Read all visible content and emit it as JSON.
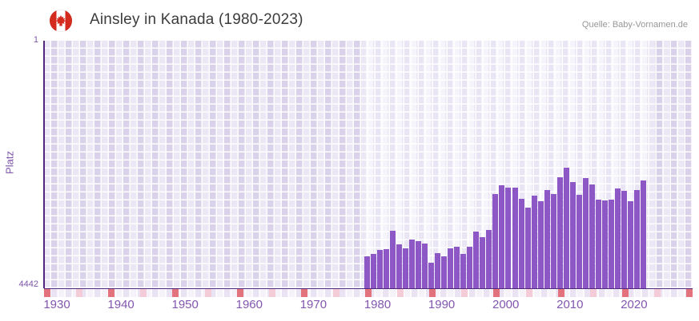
{
  "header": {
    "title": "Ainsley in Kanada (1980-2023)",
    "source": "Quelle: Baby-Vornamen.de",
    "flag_icon": "canada-flag-icon"
  },
  "y_axis": {
    "label": "Platz",
    "top_tick": "1",
    "bottom_tick": "4442"
  },
  "x_axis": {
    "ticks": [
      "1930",
      "1940",
      "1950",
      "1960",
      "1970",
      "1980",
      "1990",
      "2000",
      "2010",
      "2020"
    ]
  },
  "chart_data": {
    "type": "bar",
    "title": "Ainsley in Kanada (1980-2023)",
    "xlabel": "",
    "ylabel": "Platz",
    "y_axis_inverted": true,
    "ylim": [
      1,
      4442
    ],
    "grid": true,
    "legend_position": "none",
    "x_range_shown": [
      1928,
      2028
    ],
    "highlight_band_years": [
      1978,
      2023
    ],
    "x": [
      1980,
      1981,
      1982,
      1983,
      1984,
      1985,
      1986,
      1987,
      1988,
      1989,
      1990,
      1991,
      1992,
      1993,
      1994,
      1995,
      1996,
      1997,
      1998,
      1999,
      2000,
      2001,
      2002,
      2003,
      2004,
      2005,
      2006,
      2007,
      2008,
      2009,
      2010,
      2011,
      2012,
      2013,
      2014,
      2015,
      2016,
      2017,
      2018,
      2019,
      2020,
      2021,
      2022,
      2023
    ],
    "values": [
      3870,
      3830,
      3760,
      3745,
      3410,
      3660,
      3730,
      3570,
      3595,
      3640,
      3990,
      3810,
      3870,
      3725,
      3700,
      3820,
      3700,
      3425,
      3520,
      3390,
      2750,
      2590,
      2630,
      2640,
      2840,
      3000,
      2780,
      2880,
      2675,
      2750,
      2450,
      2285,
      2530,
      2760,
      2470,
      2575,
      2850,
      2865,
      2850,
      2645,
      2690,
      2875,
      2675,
      2510
    ]
  },
  "colors": {
    "bar": "#8d58c5",
    "axis_line": "#52287f",
    "tick_text": "#8257ae",
    "plot_bg": "#e0daee",
    "plot_bg_highlight": "#f2eff9",
    "strip_marker_major": "#e2737c",
    "strip_marker_minor": "#f3ccd8",
    "flag_red": "#d52b1e"
  }
}
